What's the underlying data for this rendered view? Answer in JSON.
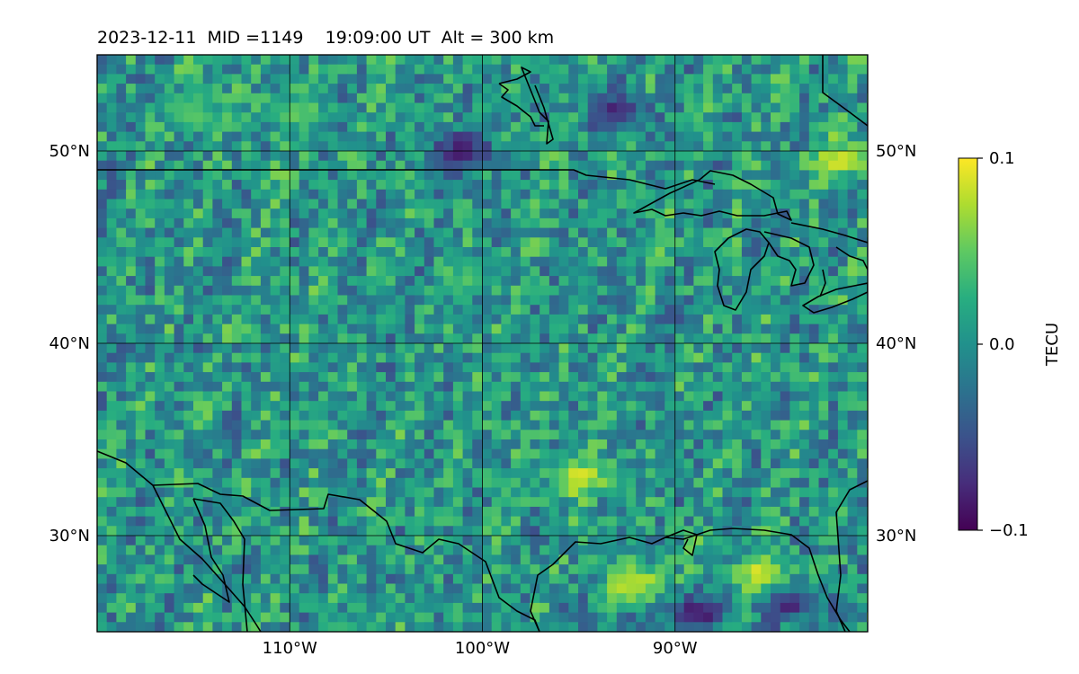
{
  "title": {
    "date": "2023-12-11",
    "mid": "MID =1149",
    "time": "19:09:00  UT",
    "alt": "Alt = 300 km"
  },
  "map": {
    "lon_range": [
      -120,
      -80
    ],
    "lat_range": [
      25,
      55
    ],
    "lat_ticks": [
      {
        "value": 50,
        "label": "50°N"
      },
      {
        "value": 40,
        "label": "40°N"
      },
      {
        "value": 30,
        "label": "30°N"
      }
    ],
    "lon_ticks": [
      {
        "value": -110,
        "label": "110°W"
      },
      {
        "value": -100,
        "label": "100°W"
      },
      {
        "value": -90,
        "label": "90°W"
      }
    ],
    "gridlines": true
  },
  "colorbar": {
    "label": "TECU",
    "colormap": "viridis",
    "range": [
      -0.1,
      0.1
    ],
    "ticks": [
      {
        "value": 0.1,
        "label": "0.1"
      },
      {
        "value": 0.0,
        "label": "0.0"
      },
      {
        "value": -0.1,
        "label": "−0.1"
      }
    ]
  },
  "chart_data": {
    "type": "heatmap",
    "title": "2023-12-11  MID =1149    19:09:00  UT  Alt = 300 km",
    "zlabel": "TECU",
    "zlim": [
      -0.1,
      0.1
    ],
    "xlim": [
      -120,
      -80
    ],
    "ylim": [
      25,
      55
    ],
    "grid": true,
    "notable_regions": [
      {
        "lon": -101,
        "lat": 50,
        "value": -0.1
      },
      {
        "lon": -93,
        "lat": 52,
        "value": -0.09
      },
      {
        "lon": -89,
        "lat": 26,
        "value": -0.1
      },
      {
        "lon": -84,
        "lat": 26.5,
        "value": -0.1
      },
      {
        "lon": -92,
        "lat": 27.5,
        "value": 0.1
      },
      {
        "lon": -85.5,
        "lat": 28,
        "value": 0.1
      },
      {
        "lon": -95,
        "lat": 33,
        "value": 0.1
      },
      {
        "lon": -81.5,
        "lat": 49.5,
        "value": 0.1
      },
      {
        "lon": -115,
        "lat": 52,
        "value": 0.05
      },
      {
        "lon": -110,
        "lat": 52,
        "value": 0.05
      }
    ]
  }
}
